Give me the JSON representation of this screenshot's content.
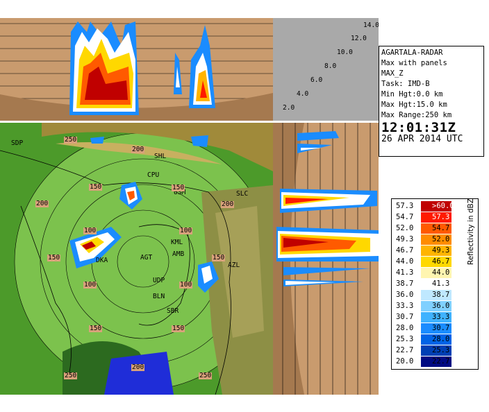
{
  "info": {
    "radar_name": "AGARTALA-RADAR",
    "product": "Max with panels",
    "field": "MAX_Z",
    "task": "Task: IMD-B",
    "min_hgt": "Min Hgt:0.0 km",
    "max_hgt": "Max Hgt:15.0 km",
    "max_range": "Max Range:250 km",
    "time": "12:01:31Z",
    "date": "26 APR 2014 UTC"
  },
  "altitude_labels": [
    "14.0",
    "12.0",
    "10.0",
    "8.0",
    "6.0",
    "4.0",
    "2.0"
  ],
  "legend": {
    "unit": "Reflectivity in dBZ",
    "rows": [
      {
        "min": "57.3",
        "max": ">60.0",
        "color": "#c00000"
      },
      {
        "min": "54.7",
        "max": "57.3",
        "color": "#ff1a00"
      },
      {
        "min": "52.0",
        "max": "54.7",
        "color": "#ff5a00"
      },
      {
        "min": "49.3",
        "max": "52.0",
        "color": "#ff8c00"
      },
      {
        "min": "46.7",
        "max": "49.3",
        "color": "#ffb400"
      },
      {
        "min": "44.0",
        "max": "46.7",
        "color": "#ffd800"
      },
      {
        "min": "41.3",
        "max": "44.0",
        "color": "#fff5b0"
      },
      {
        "min": "38.7",
        "max": "41.3",
        "color": "#ffffff"
      },
      {
        "min": "36.0",
        "max": "38.7",
        "color": "#bfe8ff"
      },
      {
        "min": "33.3",
        "max": "36.0",
        "color": "#7fd0ff"
      },
      {
        "min": "30.7",
        "max": "33.3",
        "color": "#3fb2ff"
      },
      {
        "min": "28.0",
        "max": "30.7",
        "color": "#1a8cff"
      },
      {
        "min": "25.3",
        "max": "28.0",
        "color": "#0064e6"
      },
      {
        "min": "22.7",
        "max": "25.3",
        "color": "#0040b4"
      },
      {
        "min": "20.0",
        "max": "22.7",
        "color": "#000a82"
      }
    ]
  },
  "map": {
    "stations": [
      "SDP",
      "SHL",
      "CPU",
      "USM",
      "SLC",
      "KML",
      "AGT",
      "AMB",
      "AZL",
      "UDP",
      "BLN",
      "SBR",
      "DKA"
    ],
    "range_labels": {
      "r250": "250",
      "r200": "200",
      "r150": "150",
      "r100": "100"
    }
  },
  "colors": {
    "map_green": "#4c9a2a",
    "range_ring_fill": "#8fd66a",
    "terrain_brown": "#c99b6e",
    "bay_blue": "#1f2dd8"
  }
}
